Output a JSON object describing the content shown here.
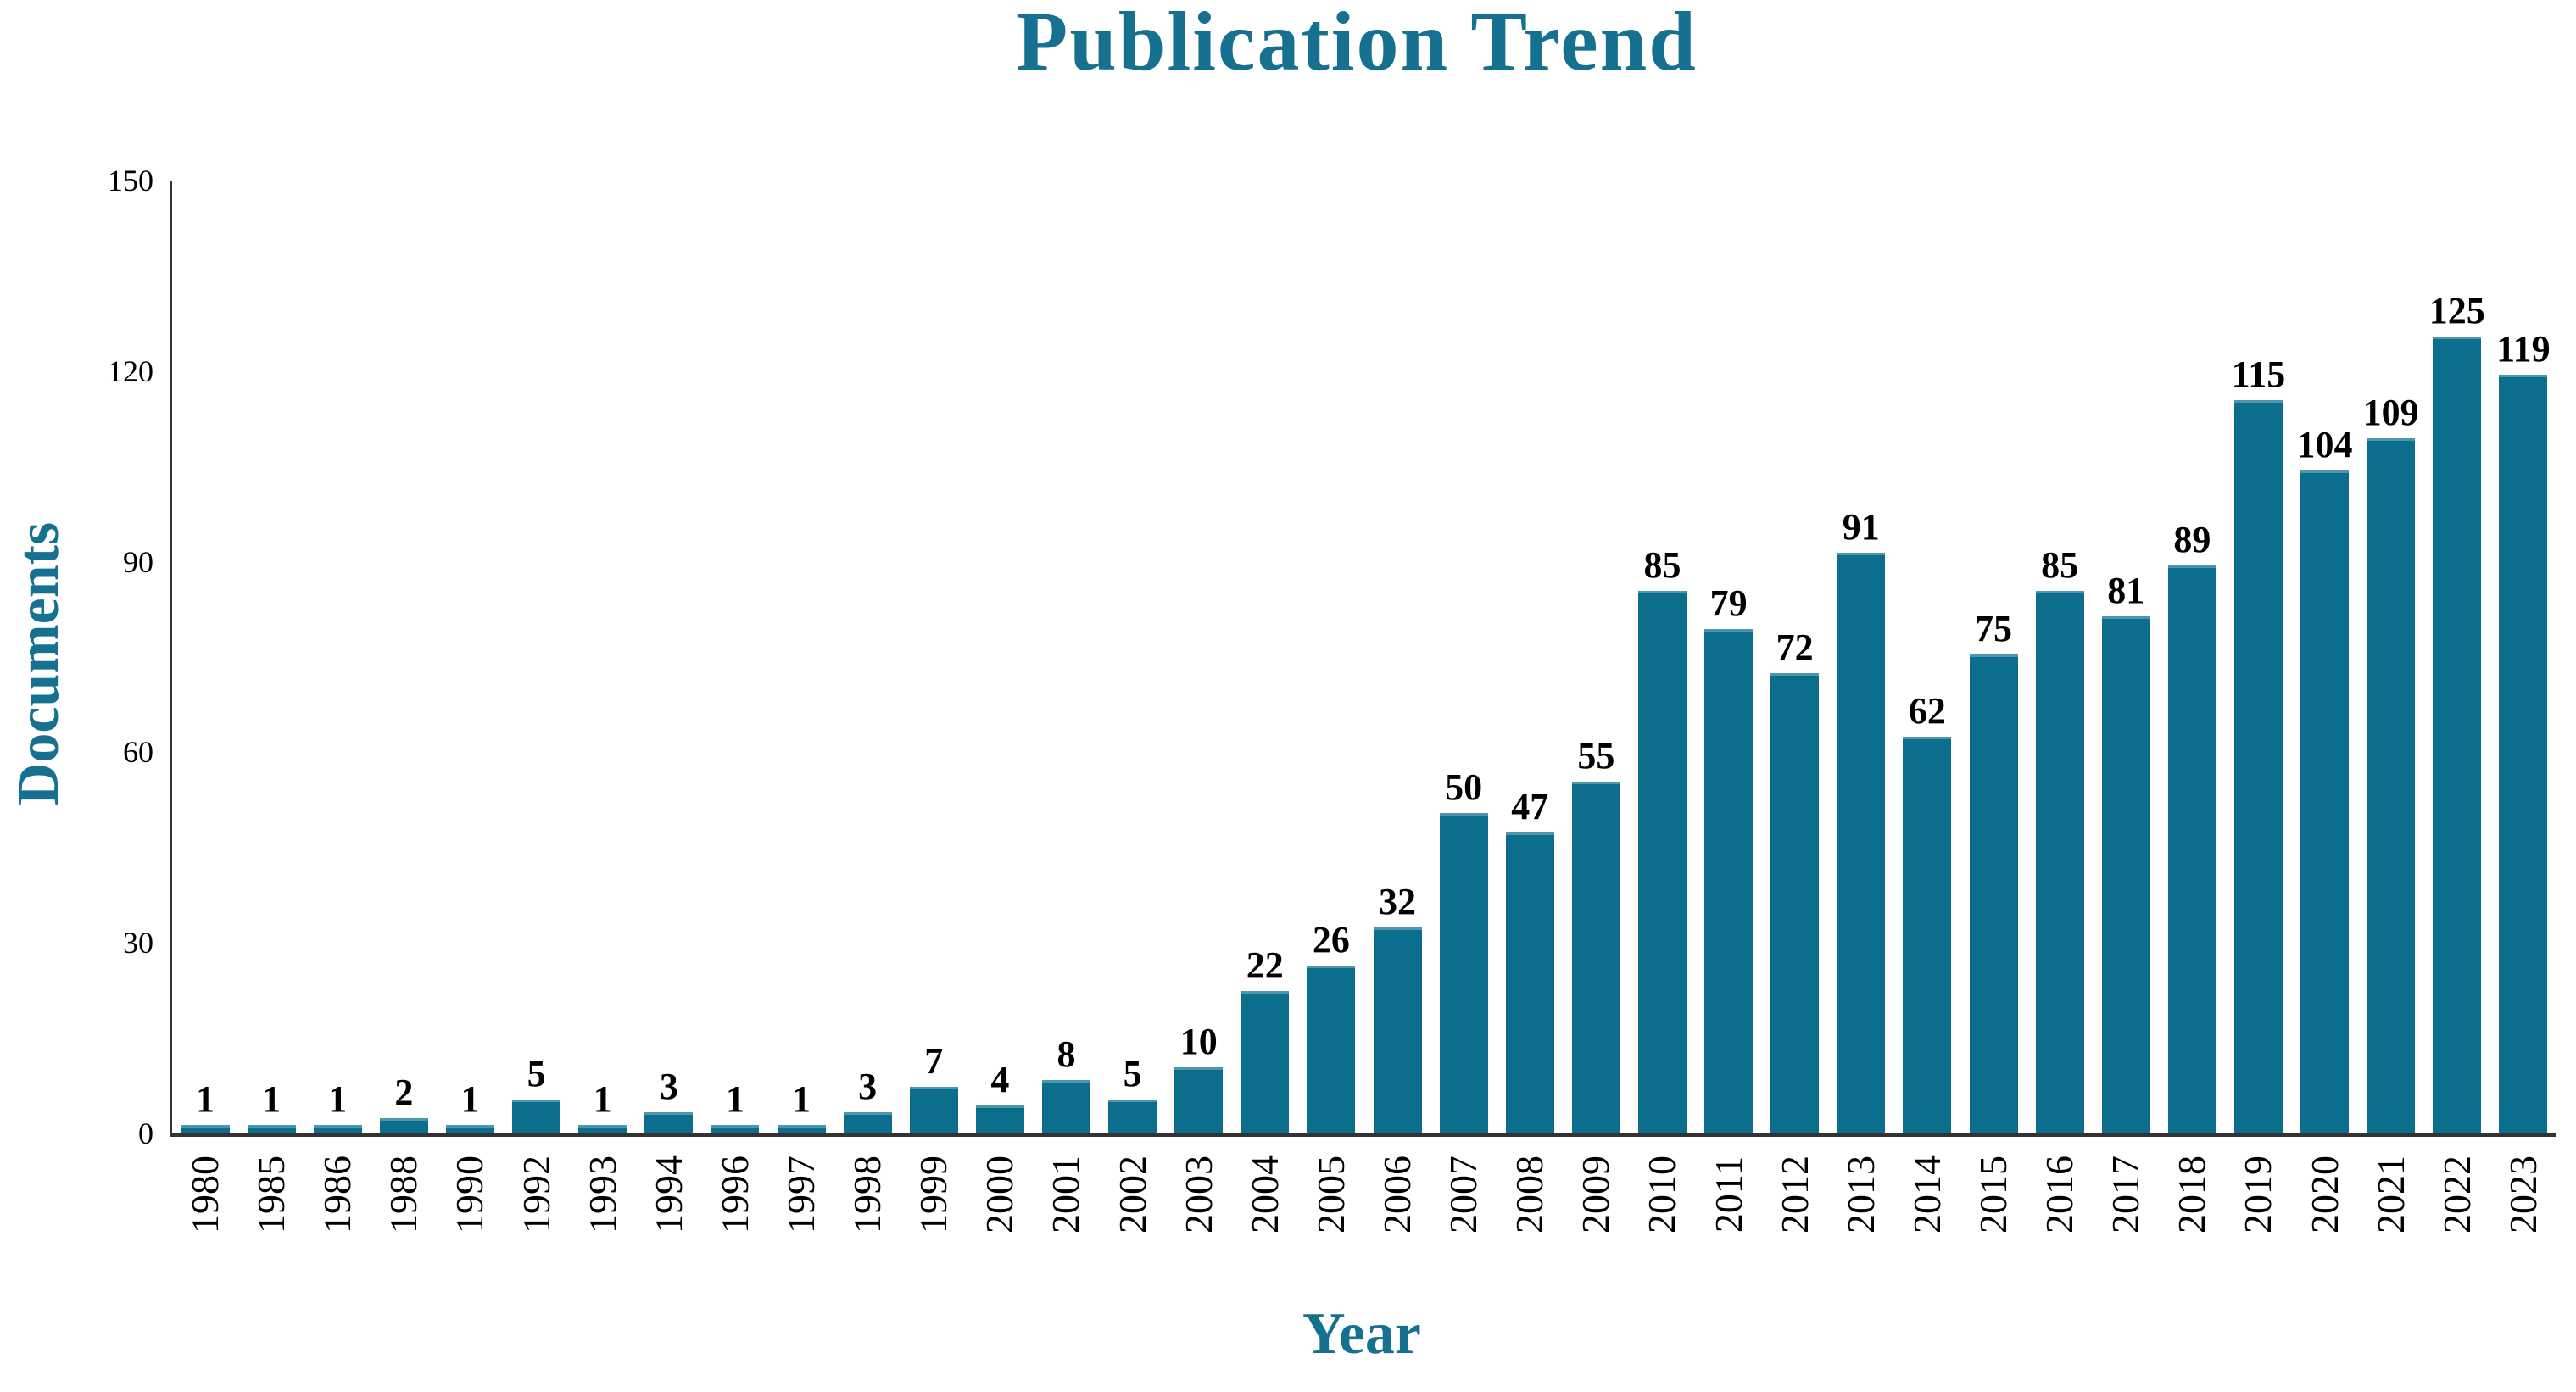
{
  "chart_data": {
    "type": "bar",
    "title": "Publication Trend",
    "xlabel": "Year",
    "ylabel": "Documents",
    "categories": [
      "1980",
      "1985",
      "1986",
      "1988",
      "1990",
      "1992",
      "1993",
      "1994",
      "1996",
      "1997",
      "1998",
      "1999",
      "2000",
      "2001",
      "2002",
      "2003",
      "2004",
      "2005",
      "2006",
      "2007",
      "2008",
      "2009",
      "2010",
      "2011",
      "2012",
      "2013",
      "2014",
      "2015",
      "2016",
      "2017",
      "2018",
      "2019",
      "2020",
      "2021",
      "2022",
      "2023"
    ],
    "values": [
      1,
      1,
      1,
      2,
      1,
      5,
      1,
      3,
      1,
      1,
      3,
      7,
      4,
      8,
      5,
      10,
      22,
      26,
      32,
      50,
      47,
      55,
      85,
      79,
      72,
      91,
      62,
      75,
      85,
      81,
      89,
      115,
      104,
      109,
      125,
      119
    ],
    "ylim": [
      0,
      150
    ],
    "yticks": [
      0,
      30,
      60,
      90,
      120,
      150
    ],
    "grid": false,
    "legend": "none",
    "value_labels_shown": true,
    "x_tick_rotation_degrees": 90,
    "colors": {
      "bar": "#0b6e8c",
      "accent_text": "#16708f",
      "axis": "#333333",
      "value_label": "#000000",
      "tick_label": "#000000",
      "background": "#ffffff"
    }
  }
}
